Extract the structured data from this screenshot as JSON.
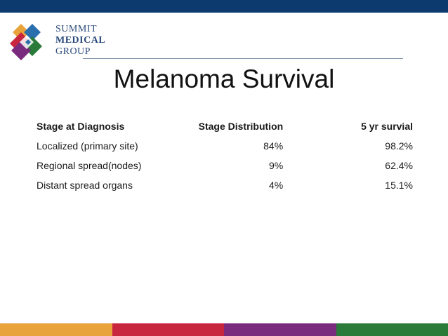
{
  "logo": {
    "line1": "SUMMIT",
    "line2": "MEDICAL",
    "line3": "GROUP",
    "colors": [
      "#e8a33a",
      "#c8263e",
      "#7a2b7e",
      "#2a7a3a",
      "#2a6fae"
    ]
  },
  "slide": {
    "title": "Melanoma Survival"
  },
  "table": {
    "headers": [
      "Stage at Diagnosis",
      "Stage Distribution",
      "5 yr survial"
    ],
    "rows": [
      [
        "Localized (primary site)",
        "84%",
        "98.2%"
      ],
      [
        "Regional spread(nodes)",
        "9%",
        "62.4%"
      ],
      [
        "Distant spread organs",
        "4%",
        "15.1%"
      ]
    ]
  },
  "theme": {
    "top_bar": "#0d3a6e",
    "bottom_bar": [
      "#e8a33a",
      "#c8263e",
      "#7a2b7e",
      "#2a7a3a"
    ]
  }
}
